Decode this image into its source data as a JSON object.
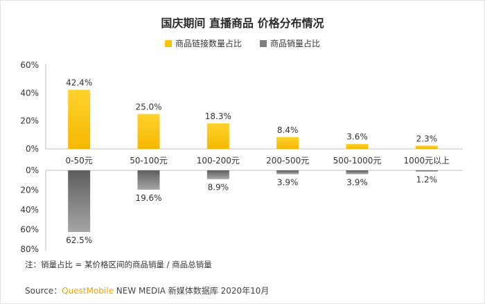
{
  "title": "国庆期间 直播商品 价格分布情况",
  "chart_data": {
    "type": "bar",
    "categories": [
      "0-50元",
      "50-100元",
      "100-200元",
      "200-500元",
      "500-1000元",
      "1000元以上"
    ],
    "series": [
      {
        "name": "商品链接数量占比",
        "values": [
          42.4,
          25.0,
          18.3,
          8.4,
          3.6,
          2.3
        ],
        "labels": [
          "42.4%",
          "25.0%",
          "18.3%",
          "8.4%",
          "3.6%",
          "2.3%"
        ],
        "color": "#f9c40b",
        "direction": "up"
      },
      {
        "name": "商品销量占比",
        "values": [
          62.5,
          19.6,
          8.9,
          3.9,
          3.9,
          1.2
        ],
        "labels": [
          "62.5%",
          "19.6%",
          "8.9%",
          "3.9%",
          "3.9%",
          "1.2%"
        ],
        "color": "#7f7f7f",
        "direction": "down"
      }
    ],
    "upper_axis": {
      "ylim": [
        0,
        60
      ],
      "ticks": [
        "0%",
        "20%",
        "40%",
        "60%"
      ]
    },
    "lower_axis": {
      "ylim": [
        0,
        80
      ],
      "ticks": [
        "0%",
        "20%",
        "40%",
        "60%",
        "80%"
      ]
    },
    "legend_position": "top-center",
    "grid": false
  },
  "note": "注：销量占比 = 某价格区间的商品销量 / 商品总销量",
  "source": {
    "prefix": "Source：",
    "brand": "QuestMobile",
    "rest": " NEW MEDIA 新媒体数据库 2020年10月"
  }
}
